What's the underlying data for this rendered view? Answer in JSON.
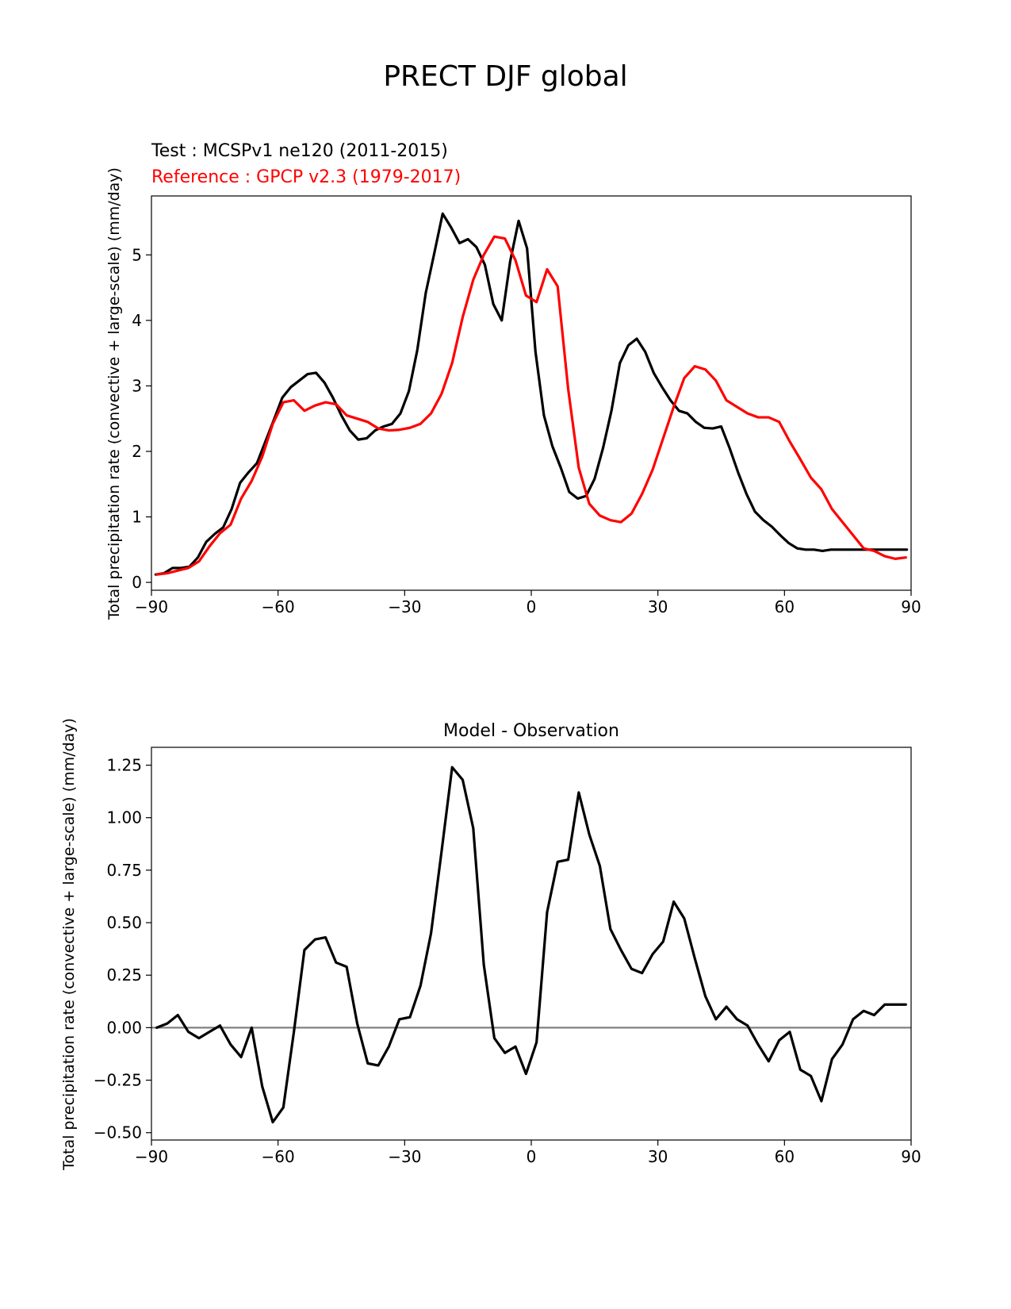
{
  "figure": {
    "title": "PRECT DJF global"
  },
  "chart_data": [
    {
      "type": "line",
      "title_left_test": "Test : MCSPv1 ne120 (2011-2015)",
      "title_left_reference": "Reference : GPCP v2.3 (1979-2017)",
      "xlabel": "",
      "ylabel": "Total precipitation rate (convective + large-scale) (mm/day)",
      "xlim": [
        -90,
        90
      ],
      "ylim": [
        -0.12,
        5.9
      ],
      "xticks": [
        -90,
        -60,
        -30,
        0,
        30,
        60,
        90
      ],
      "xtick_labels": [
        "−90",
        "−60",
        "−30",
        "0",
        "30",
        "60",
        "90"
      ],
      "yticks": [
        0,
        1,
        2,
        3,
        4,
        5
      ],
      "ytick_labels": [
        "0",
        "1",
        "2",
        "3",
        "4",
        "5"
      ],
      "grid": false,
      "colors": {
        "test": "#000000",
        "reference": "#ff0000"
      },
      "series": [
        {
          "color": "#000000",
          "x": [
            -89,
            -87,
            -85,
            -83,
            -81,
            -79,
            -77,
            -75,
            -73,
            -71,
            -69,
            -67,
            -65,
            -63,
            -61,
            -59,
            -57,
            -55,
            -53,
            -51,
            -49,
            -47,
            -45,
            -43,
            -41,
            -39,
            -37,
            -35,
            -33,
            -31,
            -29,
            -27,
            -25,
            -23,
            -21,
            -19,
            -17,
            -15,
            -13,
            -11,
            -9,
            -7,
            -5,
            -3,
            -1,
            1,
            3,
            5,
            7,
            9,
            11,
            13,
            15,
            17,
            19,
            21,
            23,
            25,
            27,
            29,
            31,
            33,
            35,
            37,
            39,
            41,
            43,
            45,
            47,
            49,
            51,
            53,
            55,
            57,
            59,
            61,
            63,
            65,
            67,
            69,
            71,
            73,
            75,
            77,
            79,
            81,
            83,
            85,
            87,
            89
          ],
          "values": [
            0.12,
            0.14,
            0.22,
            0.22,
            0.24,
            0.38,
            0.62,
            0.74,
            0.84,
            1.12,
            1.52,
            1.68,
            1.82,
            2.15,
            2.48,
            2.82,
            2.98,
            3.08,
            3.18,
            3.2,
            3.05,
            2.82,
            2.55,
            2.32,
            2.18,
            2.2,
            2.32,
            2.38,
            2.42,
            2.58,
            2.92,
            3.55,
            4.42,
            5.02,
            5.63,
            5.42,
            5.18,
            5.24,
            5.12,
            4.85,
            4.25,
            4.0,
            4.9,
            5.52,
            5.1,
            3.52,
            2.55,
            2.08,
            1.75,
            1.38,
            1.28,
            1.32,
            1.58,
            2.05,
            2.62,
            3.35,
            3.62,
            3.72,
            3.52,
            3.2,
            2.98,
            2.78,
            2.62,
            2.58,
            2.45,
            2.36,
            2.35,
            2.38,
            2.05,
            1.68,
            1.35,
            1.08,
            0.95,
            0.85,
            0.72,
            0.6,
            0.52,
            0.5,
            0.5,
            0.48,
            0.5,
            0.5,
            0.5,
            0.5,
            0.5,
            0.5,
            0.5,
            0.5,
            0.5,
            0.5
          ]
        },
        {
          "color": "#ff0000",
          "x": [
            -88.75,
            -86.25,
            -83.75,
            -81.25,
            -78.75,
            -76.25,
            -73.75,
            -71.25,
            -68.75,
            -66.25,
            -63.75,
            -61.25,
            -58.75,
            -56.25,
            -53.75,
            -51.25,
            -48.75,
            -46.25,
            -43.75,
            -41.25,
            -38.75,
            -36.25,
            -33.75,
            -31.25,
            -28.75,
            -26.25,
            -23.75,
            -21.25,
            -18.75,
            -16.25,
            -13.75,
            -11.25,
            -8.75,
            -6.25,
            -3.75,
            -1.25,
            1.25,
            3.75,
            6.25,
            8.75,
            11.25,
            13.75,
            16.25,
            18.75,
            21.25,
            23.75,
            26.25,
            28.75,
            31.25,
            33.75,
            36.25,
            38.75,
            41.25,
            43.75,
            46.25,
            48.75,
            51.25,
            53.75,
            56.25,
            58.75,
            61.25,
            63.75,
            66.25,
            68.75,
            71.25,
            73.75,
            76.25,
            78.75,
            81.25,
            83.75,
            86.25,
            88.75
          ],
          "values": [
            0.12,
            0.14,
            0.18,
            0.22,
            0.32,
            0.55,
            0.75,
            0.88,
            1.28,
            1.55,
            1.92,
            2.42,
            2.75,
            2.78,
            2.62,
            2.7,
            2.75,
            2.72,
            2.55,
            2.5,
            2.45,
            2.35,
            2.32,
            2.33,
            2.36,
            2.42,
            2.58,
            2.88,
            3.35,
            4.05,
            4.62,
            5.0,
            5.28,
            5.25,
            4.92,
            4.38,
            4.28,
            4.78,
            4.52,
            2.95,
            1.75,
            1.2,
            1.02,
            0.95,
            0.92,
            1.05,
            1.35,
            1.72,
            2.2,
            2.68,
            3.12,
            3.3,
            3.25,
            3.08,
            2.78,
            2.68,
            2.58,
            2.52,
            2.52,
            2.45,
            2.15,
            1.88,
            1.6,
            1.42,
            1.12,
            0.92,
            0.72,
            0.52,
            0.48,
            0.4,
            0.36,
            0.38
          ]
        }
      ]
    },
    {
      "type": "line",
      "title": "Model - Observation",
      "xlabel": "",
      "ylabel": "Total precipitation rate (convective + large-scale) (mm/day)",
      "xlim": [
        -90,
        90
      ],
      "ylim": [
        -0.535,
        1.335
      ],
      "xticks": [
        -90,
        -60,
        -30,
        0,
        30,
        60,
        90
      ],
      "xtick_labels": [
        "−90",
        "−60",
        "−30",
        "0",
        "30",
        "60",
        "90"
      ],
      "yticks": [
        -0.5,
        -0.25,
        0.0,
        0.25,
        0.5,
        0.75,
        1.0,
        1.25
      ],
      "ytick_labels": [
        "−0.50",
        "−0.25",
        "0.00",
        "0.25",
        "0.50",
        "0.75",
        "1.00",
        "1.25"
      ],
      "zero_line": 0,
      "grid": false,
      "colors": {
        "diff": "#000000",
        "zero_line": "#808080"
      },
      "series": [
        {
          "color": "#000000",
          "x": [
            -88.75,
            -86.25,
            -83.75,
            -81.25,
            -78.75,
            -76.25,
            -73.75,
            -71.25,
            -68.75,
            -66.25,
            -63.75,
            -61.25,
            -58.75,
            -56.25,
            -53.75,
            -51.25,
            -48.75,
            -46.25,
            -43.75,
            -41.25,
            -38.75,
            -36.25,
            -33.75,
            -31.25,
            -28.75,
            -26.25,
            -23.75,
            -21.25,
            -18.75,
            -16.25,
            -13.75,
            -11.25,
            -8.75,
            -6.25,
            -3.75,
            -1.25,
            1.25,
            3.75,
            6.25,
            8.75,
            11.25,
            13.75,
            16.25,
            18.75,
            21.25,
            23.75,
            26.25,
            28.75,
            31.25,
            33.75,
            36.25,
            38.75,
            41.25,
            43.75,
            46.25,
            48.75,
            51.25,
            53.75,
            56.25,
            58.75,
            61.25,
            63.75,
            66.25,
            68.75,
            71.25,
            73.75,
            76.25,
            78.75,
            81.25,
            83.75,
            86.25,
            88.75
          ],
          "values": [
            0.0,
            0.02,
            0.06,
            -0.02,
            -0.05,
            -0.02,
            0.01,
            -0.08,
            -0.14,
            0.0,
            -0.28,
            -0.45,
            -0.38,
            -0.02,
            0.37,
            0.42,
            0.43,
            0.31,
            0.29,
            0.02,
            -0.17,
            -0.18,
            -0.09,
            0.04,
            0.05,
            0.2,
            0.45,
            0.84,
            1.24,
            1.18,
            0.95,
            0.3,
            -0.05,
            -0.12,
            -0.09,
            -0.22,
            -0.07,
            0.55,
            0.79,
            0.8,
            1.12,
            0.92,
            0.77,
            0.47,
            0.37,
            0.28,
            0.26,
            0.35,
            0.41,
            0.6,
            0.52,
            0.33,
            0.15,
            0.04,
            0.1,
            0.04,
            0.01,
            -0.08,
            -0.16,
            -0.06,
            -0.02,
            -0.2,
            -0.23,
            -0.35,
            -0.15,
            -0.08,
            0.04,
            0.08,
            0.06,
            0.11,
            0.11,
            0.11
          ]
        }
      ]
    }
  ]
}
